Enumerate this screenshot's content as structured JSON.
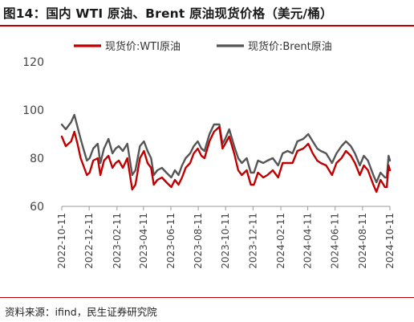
{
  "header": {
    "title": "图14：国内 WTI 原油、Brent 原油现货价格（美元/桶）"
  },
  "footer": {
    "source": "资料来源：ifind，民生证券研究院"
  },
  "colors": {
    "wti": "#c00000",
    "brent": "#555555",
    "accent": "#c00000"
  },
  "chart_data": {
    "type": "line",
    "title": "图14：国内 WTI 原油、Brent 原油现货价格（美元/桶）",
    "xlabel": "",
    "ylabel": "",
    "ylim": [
      60,
      120
    ],
    "yticks": [
      60,
      80,
      100,
      120
    ],
    "xlim": [
      "2022-10-11",
      "2024-10-11"
    ],
    "xticks": [
      "2022-10-11",
      "2022-12-11",
      "2023-02-11",
      "2023-04-11",
      "2023-06-11",
      "2023-08-11",
      "2023-10-11",
      "2023-12-11",
      "2024-02-11",
      "2024-04-11",
      "2024-06-11",
      "2024-08-11",
      "2024-10-11"
    ],
    "grid": false,
    "legend": "top",
    "series": [
      {
        "name": "现货价:WTI原油",
        "color": "#c00000",
        "points": [
          [
            "2022-10-11",
            89
          ],
          [
            "2022-10-20",
            85
          ],
          [
            "2022-11-01",
            87
          ],
          [
            "2022-11-08",
            91
          ],
          [
            "2022-11-15",
            86
          ],
          [
            "2022-11-22",
            80
          ],
          [
            "2022-11-28",
            77
          ],
          [
            "2022-12-06",
            73
          ],
          [
            "2022-12-12",
            74
          ],
          [
            "2022-12-20",
            79
          ],
          [
            "2022-12-30",
            80
          ],
          [
            "2023-01-05",
            73
          ],
          [
            "2023-01-13",
            79
          ],
          [
            "2023-01-23",
            81
          ],
          [
            "2023-02-01",
            76
          ],
          [
            "2023-02-08",
            78
          ],
          [
            "2023-02-15",
            79
          ],
          [
            "2023-02-24",
            76
          ],
          [
            "2023-03-06",
            80
          ],
          [
            "2023-03-17",
            67
          ],
          [
            "2023-03-24",
            69
          ],
          [
            "2023-04-03",
            80
          ],
          [
            "2023-04-12",
            83
          ],
          [
            "2023-04-20",
            78
          ],
          [
            "2023-04-28",
            76
          ],
          [
            "2023-05-04",
            69
          ],
          [
            "2023-05-12",
            71
          ],
          [
            "2023-05-22",
            72
          ],
          [
            "2023-06-01",
            70
          ],
          [
            "2023-06-12",
            68
          ],
          [
            "2023-06-20",
            71
          ],
          [
            "2023-06-28",
            69
          ],
          [
            "2023-07-06",
            72
          ],
          [
            "2023-07-14",
            76
          ],
          [
            "2023-07-24",
            78
          ],
          [
            "2023-08-01",
            82
          ],
          [
            "2023-08-10",
            84
          ],
          [
            "2023-08-18",
            81
          ],
          [
            "2023-08-25",
            80
          ],
          [
            "2023-09-05",
            87
          ],
          [
            "2023-09-15",
            91
          ],
          [
            "2023-09-27",
            93
          ],
          [
            "2023-10-04",
            84
          ],
          [
            "2023-10-10",
            86
          ],
          [
            "2023-10-19",
            89
          ],
          [
            "2023-10-30",
            82
          ],
          [
            "2023-11-08",
            75
          ],
          [
            "2023-11-16",
            73
          ],
          [
            "2023-11-27",
            75
          ],
          [
            "2023-12-06",
            69
          ],
          [
            "2023-12-13",
            69
          ],
          [
            "2023-12-22",
            74
          ],
          [
            "2024-01-03",
            72
          ],
          [
            "2024-01-12",
            73
          ],
          [
            "2024-01-24",
            75
          ],
          [
            "2024-02-05",
            72
          ],
          [
            "2024-02-15",
            78
          ],
          [
            "2024-02-26",
            78
          ],
          [
            "2024-03-08",
            78
          ],
          [
            "2024-03-19",
            83
          ],
          [
            "2024-04-01",
            84
          ],
          [
            "2024-04-12",
            86
          ],
          [
            "2024-04-22",
            82
          ],
          [
            "2024-05-02",
            79
          ],
          [
            "2024-05-10",
            78
          ],
          [
            "2024-05-22",
            77
          ],
          [
            "2024-06-04",
            73
          ],
          [
            "2024-06-14",
            78
          ],
          [
            "2024-06-25",
            80
          ],
          [
            "2024-07-05",
            83
          ],
          [
            "2024-07-16",
            81
          ],
          [
            "2024-07-25",
            78
          ],
          [
            "2024-08-05",
            73
          ],
          [
            "2024-08-14",
            77
          ],
          [
            "2024-08-23",
            75
          ],
          [
            "2024-09-04",
            69
          ],
          [
            "2024-09-11",
            66
          ],
          [
            "2024-09-20",
            71
          ],
          [
            "2024-09-30",
            68
          ],
          [
            "2024-10-04",
            68
          ],
          [
            "2024-10-08",
            77
          ],
          [
            "2024-10-11",
            75
          ]
        ]
      },
      {
        "name": "现货价:Brent原油",
        "color": "#555555",
        "points": [
          [
            "2022-10-11",
            94
          ],
          [
            "2022-10-20",
            92
          ],
          [
            "2022-11-01",
            95
          ],
          [
            "2022-11-08",
            98
          ],
          [
            "2022-11-15",
            93
          ],
          [
            "2022-11-22",
            88
          ],
          [
            "2022-11-28",
            84
          ],
          [
            "2022-12-06",
            79
          ],
          [
            "2022-12-12",
            80
          ],
          [
            "2022-12-20",
            84
          ],
          [
            "2022-12-30",
            86
          ],
          [
            "2023-01-05",
            78
          ],
          [
            "2023-01-13",
            84
          ],
          [
            "2023-01-23",
            88
          ],
          [
            "2023-02-01",
            82
          ],
          [
            "2023-02-08",
            84
          ],
          [
            "2023-02-15",
            85
          ],
          [
            "2023-02-24",
            83
          ],
          [
            "2023-03-06",
            86
          ],
          [
            "2023-03-17",
            73
          ],
          [
            "2023-03-24",
            75
          ],
          [
            "2023-04-03",
            85
          ],
          [
            "2023-04-12",
            87
          ],
          [
            "2023-04-20",
            83
          ],
          [
            "2023-04-28",
            80
          ],
          [
            "2023-05-04",
            73
          ],
          [
            "2023-05-12",
            75
          ],
          [
            "2023-05-22",
            76
          ],
          [
            "2023-06-01",
            74
          ],
          [
            "2023-06-12",
            72
          ],
          [
            "2023-06-20",
            75
          ],
          [
            "2023-06-28",
            73
          ],
          [
            "2023-07-06",
            77
          ],
          [
            "2023-07-14",
            80
          ],
          [
            "2023-07-24",
            82
          ],
          [
            "2023-08-01",
            85
          ],
          [
            "2023-08-10",
            87
          ],
          [
            "2023-08-18",
            84
          ],
          [
            "2023-08-25",
            83
          ],
          [
            "2023-09-05",
            90
          ],
          [
            "2023-09-15",
            94
          ],
          [
            "2023-09-27",
            94
          ],
          [
            "2023-10-04",
            86
          ],
          [
            "2023-10-10",
            88
          ],
          [
            "2023-10-19",
            92
          ],
          [
            "2023-10-30",
            85
          ],
          [
            "2023-11-08",
            80
          ],
          [
            "2023-11-16",
            78
          ],
          [
            "2023-11-27",
            80
          ],
          [
            "2023-12-06",
            74
          ],
          [
            "2023-12-13",
            74
          ],
          [
            "2023-12-22",
            79
          ],
          [
            "2024-01-03",
            78
          ],
          [
            "2024-01-12",
            79
          ],
          [
            "2024-01-24",
            80
          ],
          [
            "2024-02-05",
            77
          ],
          [
            "2024-02-15",
            82
          ],
          [
            "2024-02-26",
            83
          ],
          [
            "2024-03-08",
            82
          ],
          [
            "2024-03-19",
            87
          ],
          [
            "2024-04-01",
            88
          ],
          [
            "2024-04-12",
            90
          ],
          [
            "2024-04-22",
            87
          ],
          [
            "2024-05-02",
            84
          ],
          [
            "2024-05-10",
            83
          ],
          [
            "2024-05-22",
            82
          ],
          [
            "2024-06-04",
            78
          ],
          [
            "2024-06-14",
            82
          ],
          [
            "2024-06-25",
            85
          ],
          [
            "2024-07-05",
            87
          ],
          [
            "2024-07-16",
            85
          ],
          [
            "2024-07-25",
            82
          ],
          [
            "2024-08-05",
            77
          ],
          [
            "2024-08-14",
            81
          ],
          [
            "2024-08-23",
            79
          ],
          [
            "2024-09-04",
            73
          ],
          [
            "2024-09-11",
            70
          ],
          [
            "2024-09-20",
            74
          ],
          [
            "2024-09-30",
            72
          ],
          [
            "2024-10-04",
            72
          ],
          [
            "2024-10-08",
            81
          ],
          [
            "2024-10-11",
            79
          ]
        ]
      }
    ]
  }
}
